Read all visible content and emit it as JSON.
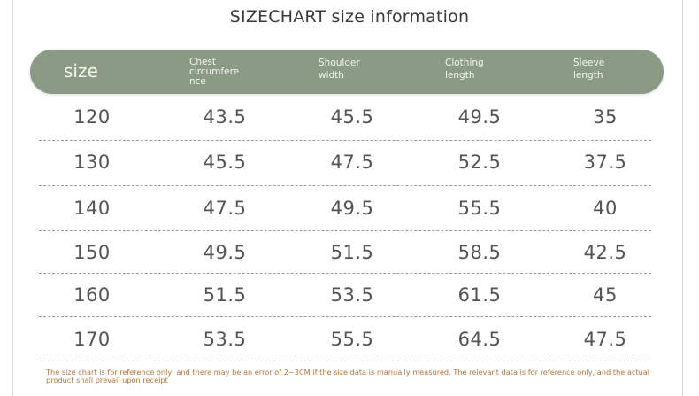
{
  "title": "SIZECHART size information",
  "header": {
    "size": "size",
    "chest": "Chest circumfere nce",
    "shoulder": "Shoulder width",
    "clothing": "Clothing length",
    "sleeve": "Sleeve length"
  },
  "rows": [
    {
      "size": "120",
      "chest": "43.5",
      "shoulder": "45.5",
      "clothing": "49.5",
      "sleeve": "35"
    },
    {
      "size": "130",
      "chest": "45.5",
      "shoulder": "47.5",
      "clothing": "52.5",
      "sleeve": "37.5"
    },
    {
      "size": "140",
      "chest": "47.5",
      "shoulder": "49.5",
      "clothing": "55.5",
      "sleeve": "40"
    },
    {
      "size": "150",
      "chest": "49.5",
      "shoulder": "51.5",
      "clothing": "58.5",
      "sleeve": "42.5"
    },
    {
      "size": "160",
      "chest": "51.5",
      "shoulder": "53.5",
      "clothing": "61.5",
      "sleeve": "45"
    },
    {
      "size": "170",
      "chest": "53.5",
      "shoulder": "55.5",
      "clothing": "64.5",
      "sleeve": "47.5"
    }
  ],
  "note": "The size chart is for reference only, and there may be an error of 2~3CM if the size data is manually measured. The relevant data is for reference only, and the actual product shall prevail upon receipt",
  "colors": {
    "header_bar": "#8a9a84",
    "note_text": "#b5763a"
  }
}
